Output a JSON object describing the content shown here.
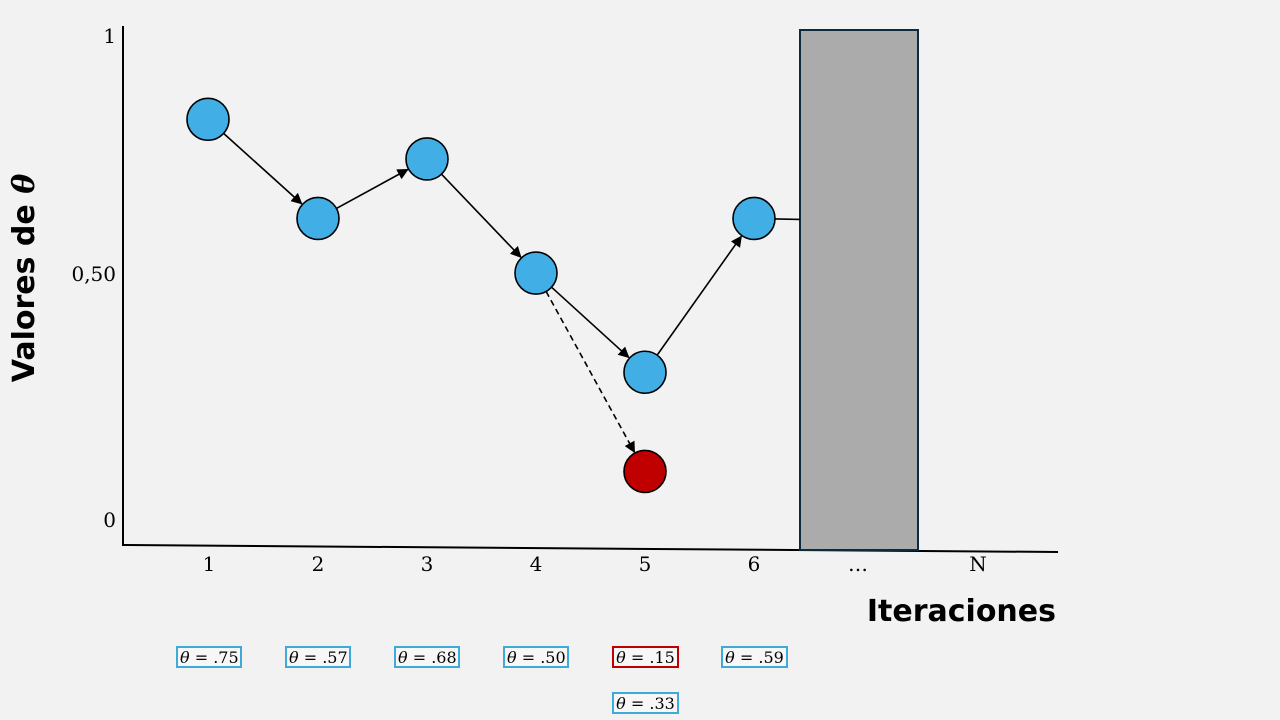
{
  "axes": {
    "y_label": "Valores de",
    "y_label_symbol": "θ",
    "x_label": "Iteraciones",
    "y_ticks": [
      "1",
      "0,50",
      "0"
    ],
    "x_ticks": [
      "1",
      "2",
      "3",
      "4",
      "5",
      "6",
      "…",
      "N"
    ]
  },
  "colors": {
    "accepted": "#41afe6",
    "rejected": "#c00000",
    "bar": "#ababab",
    "box_border": "#3fa9d9"
  },
  "chart_data": {
    "type": "scatter",
    "xlabel": "Iteraciones",
    "ylabel": "Valores de θ",
    "ylim": [
      0,
      1
    ],
    "categories": [
      "1",
      "2",
      "3",
      "4",
      "5",
      "6",
      "…",
      "N"
    ],
    "accepted": [
      {
        "x": "1",
        "y": 0.82
      },
      {
        "x": "2",
        "y": 0.62
      },
      {
        "x": "3",
        "y": 0.74
      },
      {
        "x": "4",
        "y": 0.51
      },
      {
        "x": "5",
        "y": 0.31
      },
      {
        "x": "6",
        "y": 0.62
      }
    ],
    "rejected": [
      {
        "x": "5",
        "y": 0.11
      }
    ],
    "omitted_range": [
      "…"
    ]
  },
  "value_boxes": [
    {
      "iter": "1",
      "text": " = .75",
      "rejected": false
    },
    {
      "iter": "2",
      "text": " = .57",
      "rejected": false
    },
    {
      "iter": "3",
      "text": " = .68",
      "rejected": false
    },
    {
      "iter": "4",
      "text": " = .50",
      "rejected": false
    },
    {
      "iter": "5",
      "text": " = .15",
      "rejected": true
    },
    {
      "iter": "6",
      "text": " = .59",
      "rejected": false
    },
    {
      "iter": "5",
      "text": " = .33",
      "rejected": false
    }
  ],
  "theta_symbol": "θ"
}
